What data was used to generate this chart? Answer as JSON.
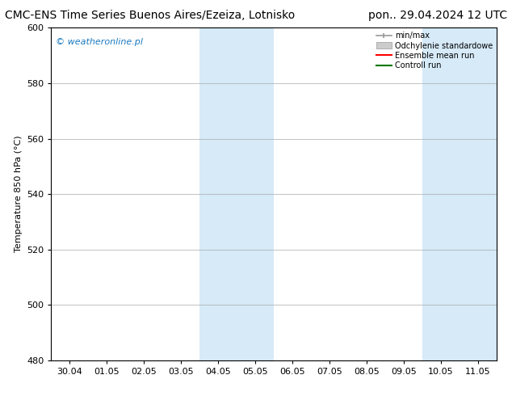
{
  "title_left": "CMC-ENS Time Series Buenos Aires/Ezeiza, Lotnisko",
  "title_right": "pon.. 29.04.2024 12 UTC",
  "ylabel": "Temperature 850 hPa (°C)",
  "watermark": "© weatheronline.pl",
  "watermark_color": "#1a7abf",
  "ylim": [
    480,
    600
  ],
  "yticks": [
    480,
    500,
    520,
    540,
    560,
    580,
    600
  ],
  "x_labels": [
    "30.04",
    "01.05",
    "02.05",
    "03.05",
    "04.05",
    "05.05",
    "06.05",
    "07.05",
    "08.05",
    "09.05",
    "10.05",
    "11.05"
  ],
  "x_values": [
    0,
    1,
    2,
    3,
    4,
    5,
    6,
    7,
    8,
    9,
    10,
    11
  ],
  "xlim_min": -0.5,
  "xlim_max": 11.5,
  "shaded_regions": [
    {
      "xmin": 3.5,
      "xmax": 5.5,
      "color": "#d6eaf8"
    },
    {
      "xmin": 9.5,
      "xmax": 11.5,
      "color": "#d6eaf8"
    }
  ],
  "bg_color": "#ffffff",
  "plot_bg_color": "#ffffff",
  "grid_color": "#aaaaaa",
  "legend_items": [
    {
      "label": "min/max",
      "color": "#999999",
      "style": "errorbar"
    },
    {
      "label": "Odchylenie standardowe",
      "color": "#cccccc",
      "style": "bar"
    },
    {
      "label": "Ensemble mean run",
      "color": "#ff0000",
      "style": "line"
    },
    {
      "label": "Controll run",
      "color": "#007700",
      "style": "line"
    }
  ],
  "title_fontsize": 10,
  "axis_fontsize": 8,
  "tick_fontsize": 8,
  "watermark_fontsize": 8
}
